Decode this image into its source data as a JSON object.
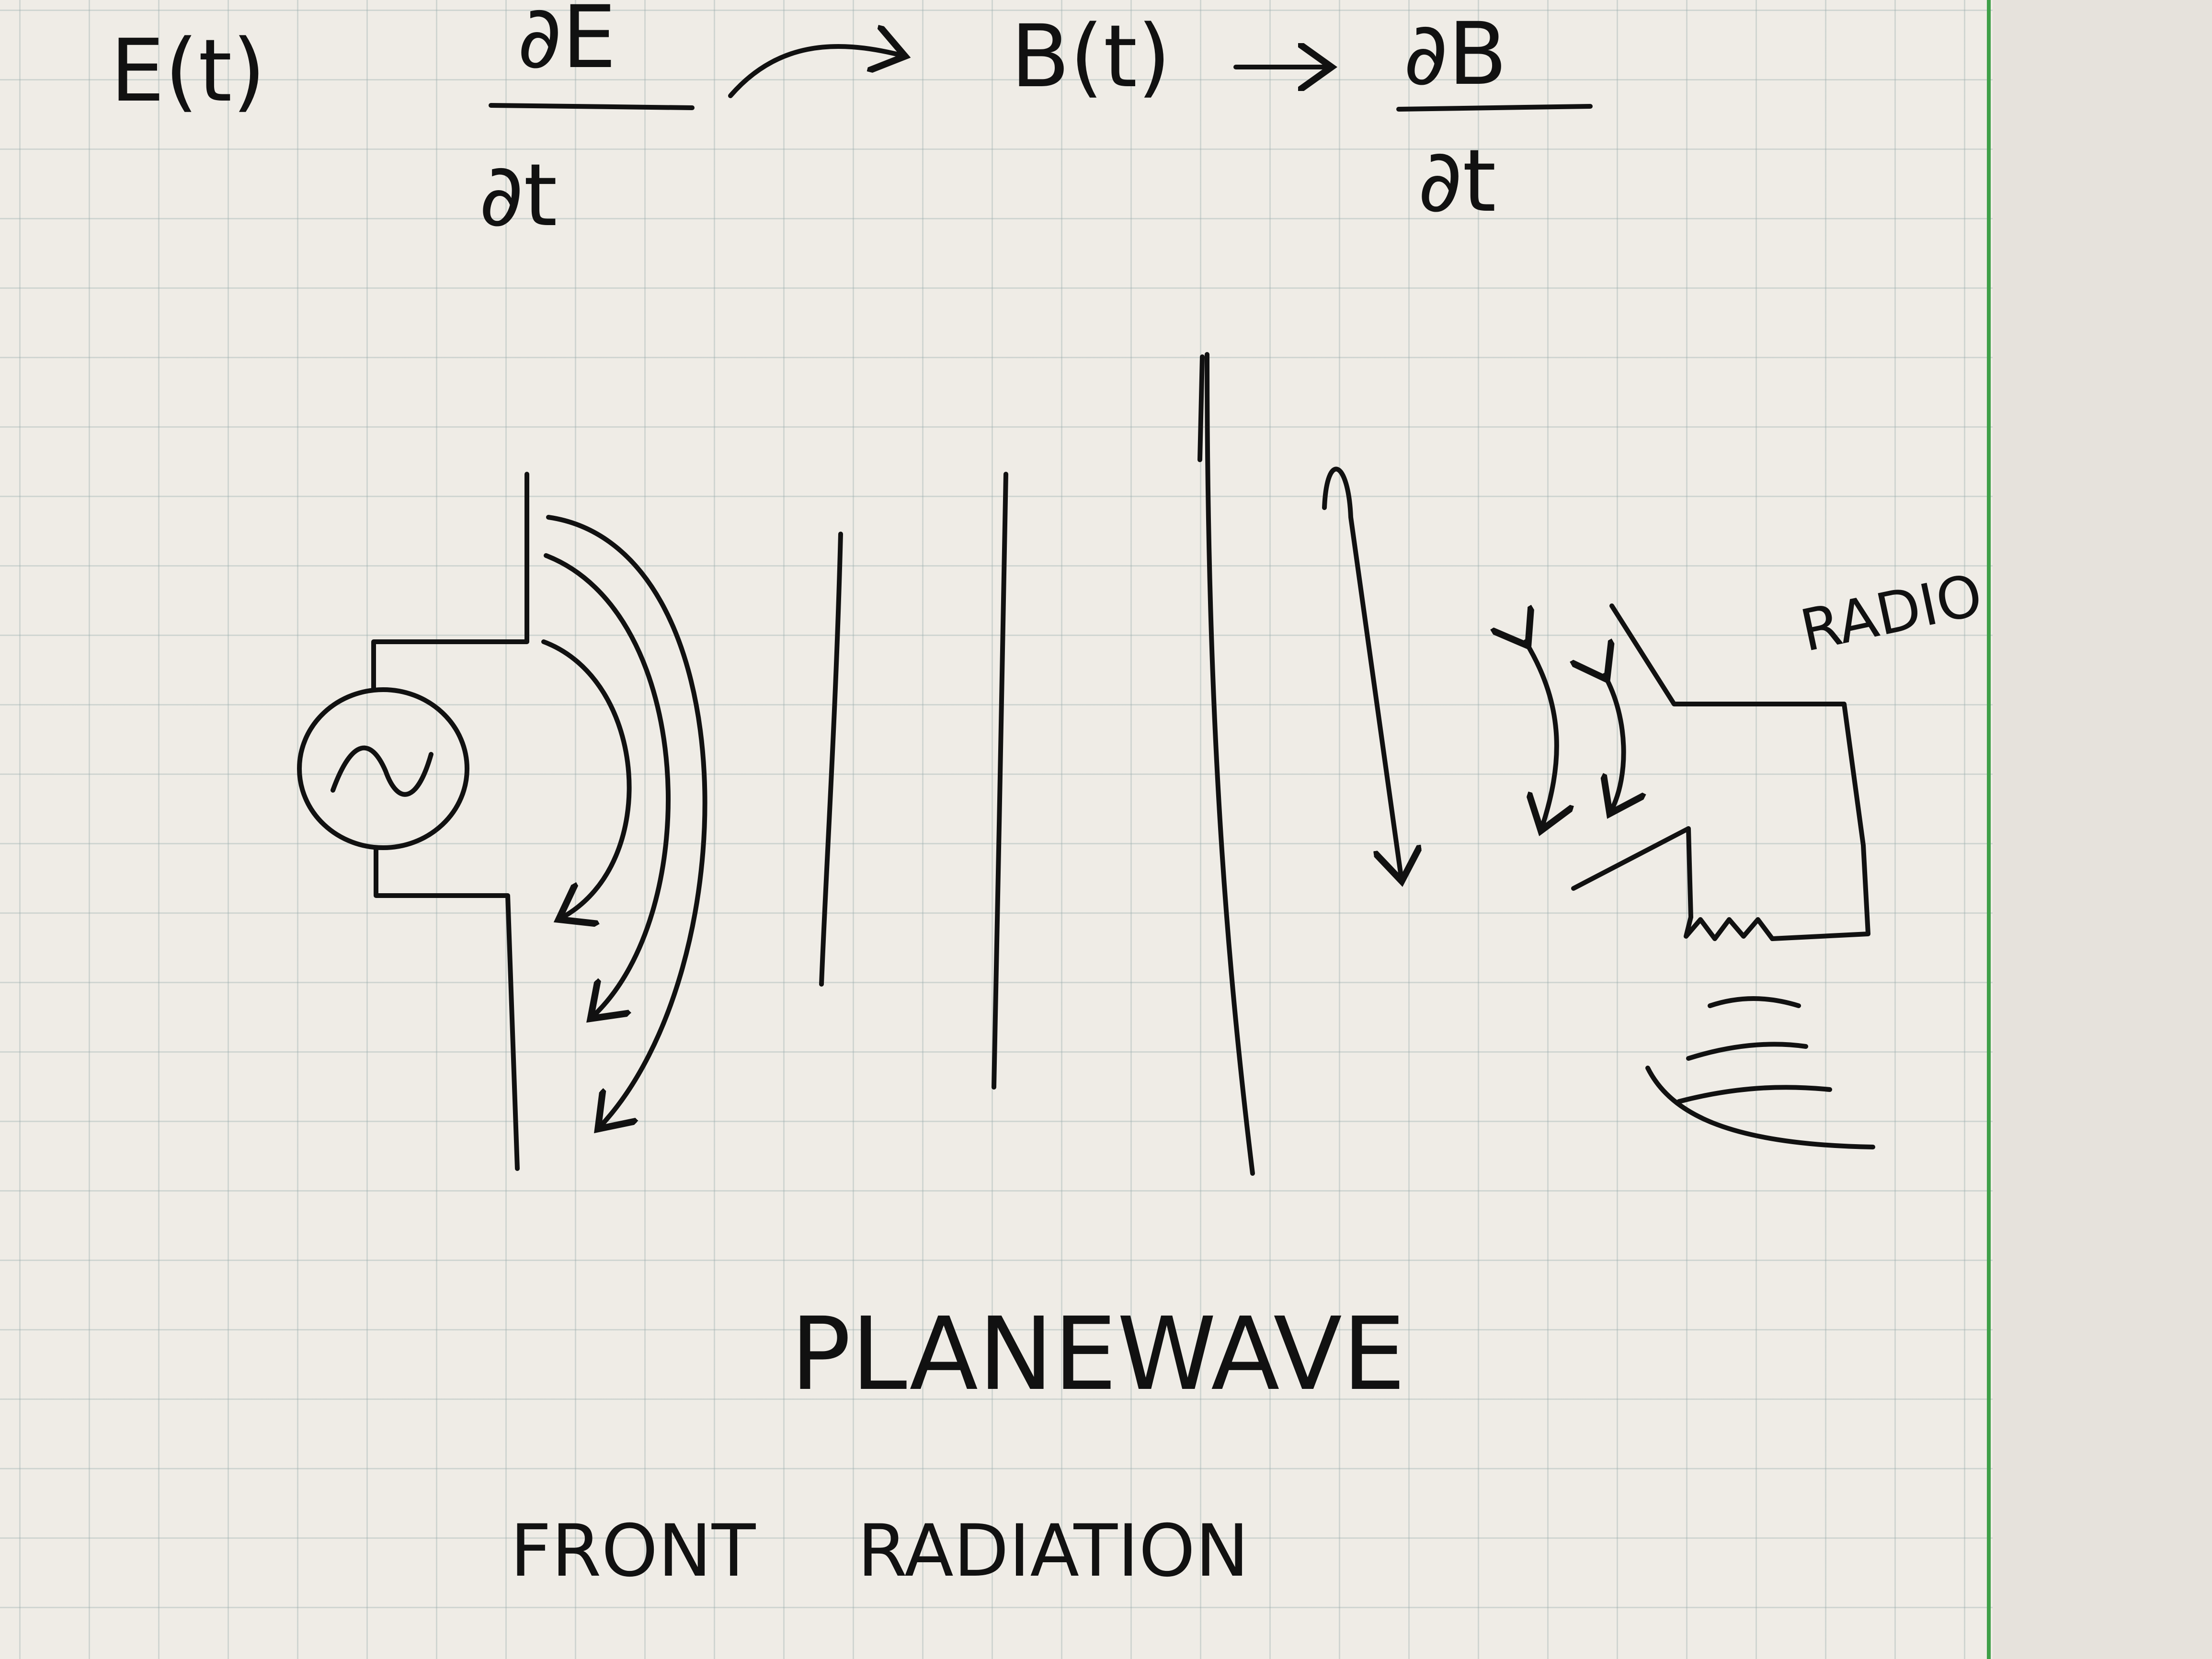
{
  "equations": {
    "e_field": "E(t)",
    "de_numerator": "∂E",
    "de_denominator": "∂t",
    "b_field": "B(t)",
    "db_numerator": "∂B",
    "db_denominator": "∂t"
  },
  "labels": {
    "radio": "RADIO",
    "plane_wave": "PLANEWAVE",
    "front": "FRONT",
    "radiation": "RADIATION"
  },
  "colors": {
    "ink": "#111111",
    "paper": "#efece6",
    "grid": "#96aaaa",
    "margin_line": "#3fa048"
  },
  "icons": {
    "source": "ac-source-icon",
    "receiver": "radio-receiver-icon",
    "sound": "sound-waves-icon"
  }
}
